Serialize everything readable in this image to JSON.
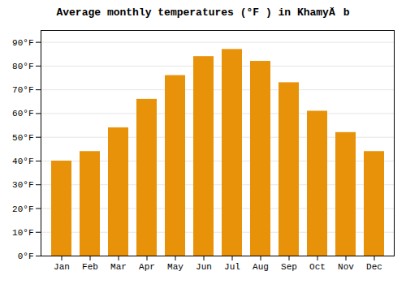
{
  "chart_data": {
    "type": "bar",
    "title": "Average monthly temperatures (°F ) in KhamyÄb",
    "categories": [
      "Jan",
      "Feb",
      "Mar",
      "Apr",
      "May",
      "Jun",
      "Jul",
      "Aug",
      "Sep",
      "Oct",
      "Nov",
      "Dec"
    ],
    "values": [
      40,
      44,
      54,
      66,
      76,
      84,
      87,
      82,
      73,
      61,
      52,
      44
    ],
    "color": "#E8920A",
    "ylim": [
      0,
      95
    ],
    "yticks": [
      {
        "value": 0,
        "label": "0°F"
      },
      {
        "value": 10,
        "label": "10°F"
      },
      {
        "value": 20,
        "label": "20°F"
      },
      {
        "value": 30,
        "label": "30°F"
      },
      {
        "value": 40,
        "label": "40°F"
      },
      {
        "value": 50,
        "label": "50°F"
      },
      {
        "value": 60,
        "label": "60°F"
      },
      {
        "value": 70,
        "label": "70°F"
      },
      {
        "value": 80,
        "label": "80°F"
      },
      {
        "value": 90,
        "label": "90°F"
      }
    ],
    "grid": true
  }
}
